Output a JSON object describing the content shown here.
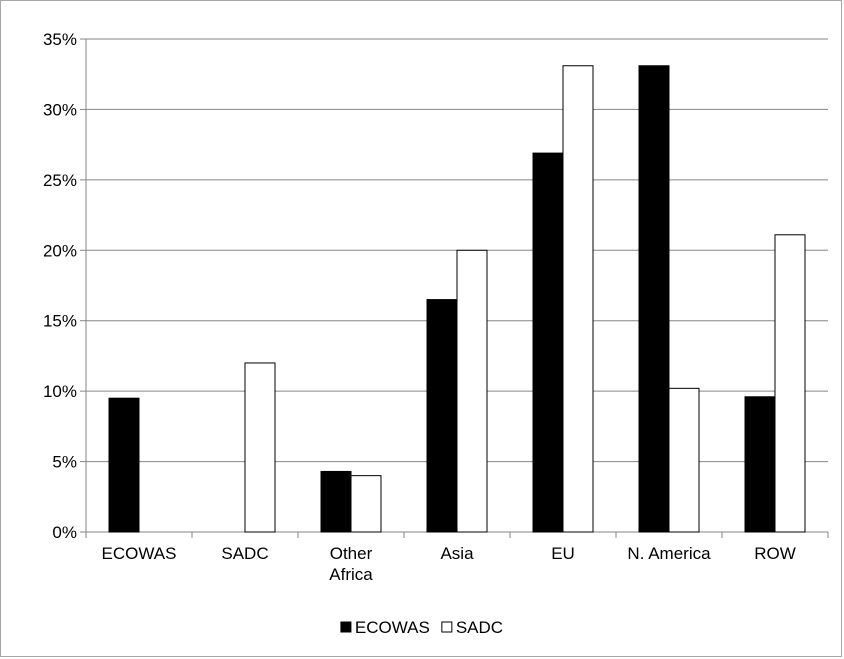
{
  "chart_data": {
    "type": "bar",
    "categories": [
      [
        "ECOWAS"
      ],
      [
        "SADC"
      ],
      [
        "Other",
        "Africa"
      ],
      [
        "Asia"
      ],
      [
        "EU"
      ],
      [
        "N. America"
      ],
      [
        "ROW"
      ]
    ],
    "series": [
      {
        "name": "ECOWAS",
        "color": "#000000",
        "values": [
          9.5,
          0,
          4.3,
          16.5,
          26.9,
          33.1,
          9.6
        ]
      },
      {
        "name": "SADC",
        "color": "#ffffff",
        "values": [
          0,
          12.0,
          4.0,
          20.0,
          33.1,
          10.2,
          21.1
        ]
      }
    ],
    "ylim": [
      0,
      35
    ],
    "yticks": [
      0,
      5,
      10,
      15,
      20,
      25,
      30,
      35
    ],
    "ytick_suffix": "%",
    "grid": true,
    "legend_position": "bottom",
    "title": "",
    "xlabel": "",
    "ylabel": ""
  }
}
